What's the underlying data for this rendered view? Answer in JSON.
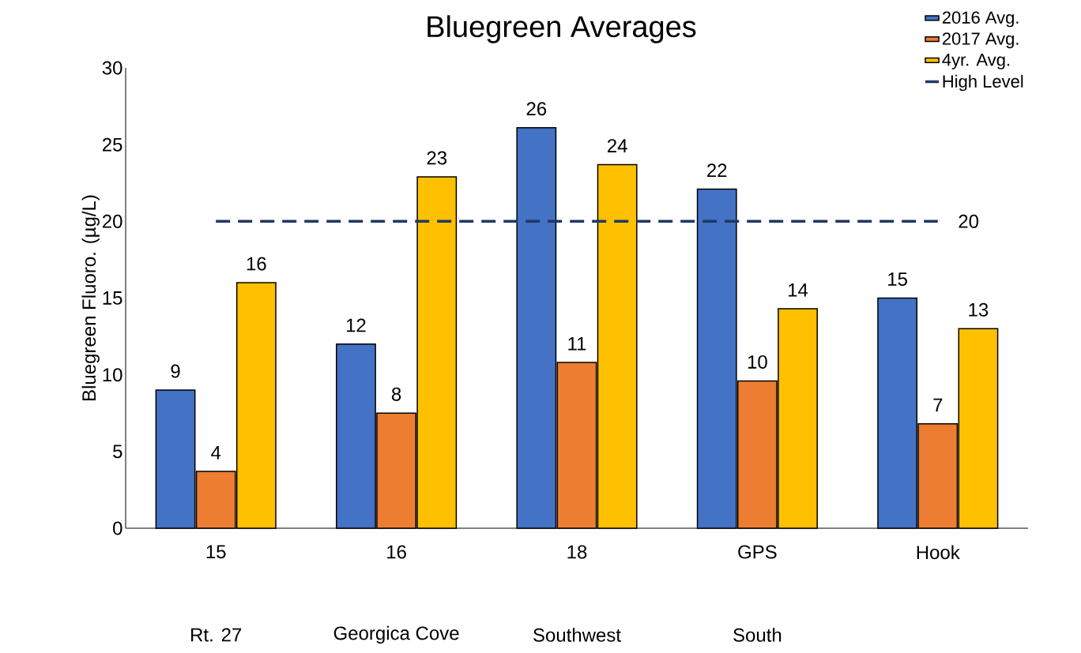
{
  "chart_data": {
    "type": "bar",
    "title": "Bluegreen Averages",
    "ylabel": "Bluegreen Fluoro. (µg/L)",
    "categories": [
      "15",
      "16",
      "18",
      "GPS",
      "Hook"
    ],
    "series": [
      {
        "name": "2016 Avg.",
        "color": "#4472c4",
        "values": [
          9.0,
          12.0,
          26.1,
          22.1,
          15.0
        ],
        "value_labels": [
          "9",
          "12",
          "26",
          "22",
          "15"
        ]
      },
      {
        "name": "2017 Avg.",
        "color": "#ed7d31",
        "values": [
          3.7,
          7.5,
          10.8,
          9.6,
          6.8
        ],
        "value_labels": [
          "4",
          "8",
          "11",
          "10",
          "7"
        ]
      },
      {
        "name": "4yr. Avg.",
        "color": "#ffc000",
        "values": [
          16.0,
          22.9,
          23.7,
          14.3,
          13.0
        ],
        "value_labels": [
          "16",
          "23",
          "24",
          "14",
          "13"
        ]
      },
      {
        "name": "High Level",
        "type": "line",
        "color": "#203864",
        "line_style": "dashed",
        "marker": "none",
        "values": [
          20,
          20,
          20,
          20,
          20
        ],
        "value_labels": [
          null,
          null,
          null,
          null,
          "20"
        ]
      }
    ],
    "ylim": [
      0,
      30
    ],
    "yticks": [
      0,
      5,
      10,
      15,
      20,
      25,
      30
    ],
    "grid": false,
    "legend": "top right",
    "annotations": [
      "Rt. 27",
      "Georgica Cove",
      "Southwest",
      "South"
    ]
  }
}
